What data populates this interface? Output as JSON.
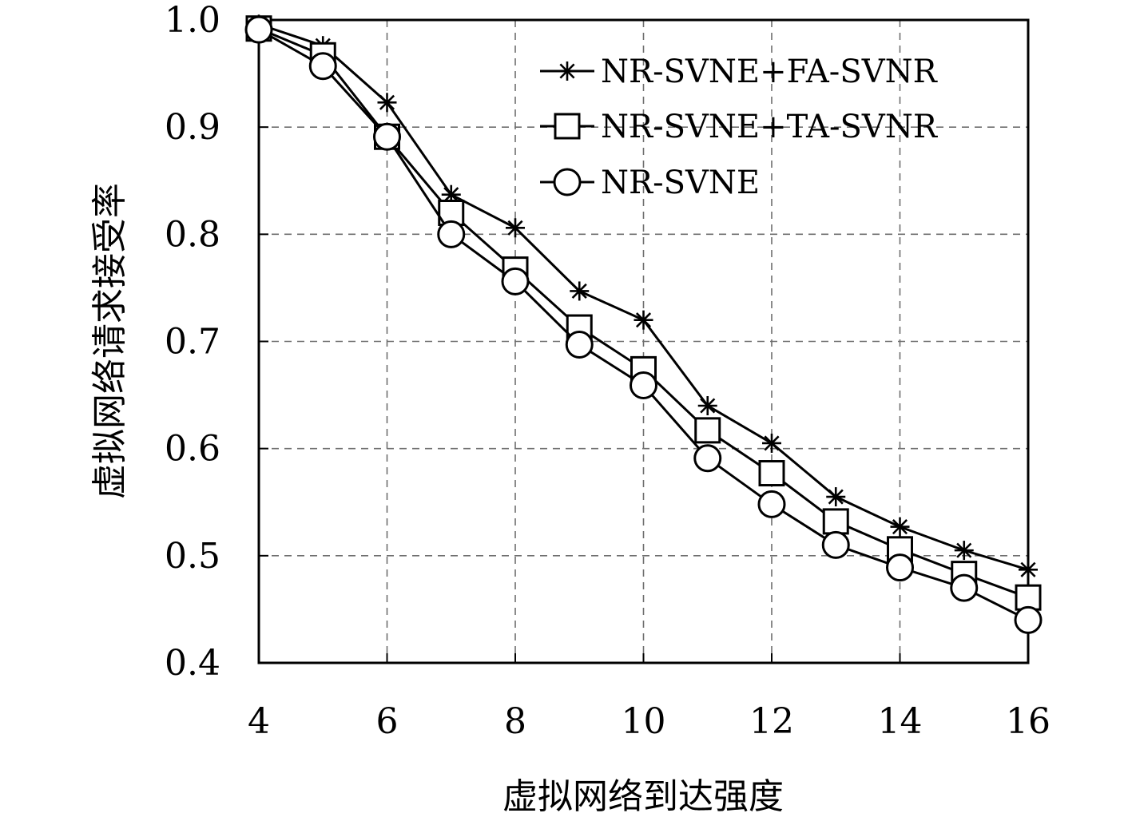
{
  "chart_data": {
    "type": "line",
    "xlabel": "虚拟网络到达强度",
    "ylabel": "虚拟网络请求接受率",
    "xlim": [
      4,
      16
    ],
    "ylim": [
      0.4,
      1.0
    ],
    "xticks": [
      4,
      6,
      8,
      10,
      12,
      14,
      16
    ],
    "yticks": [
      "0.4",
      "0.5",
      "0.6",
      "0.7",
      "0.8",
      "0.9",
      "1.0"
    ],
    "grid": true,
    "legend_position": "top-right",
    "x": [
      4,
      5,
      6,
      7,
      8,
      9,
      10,
      11,
      12,
      13,
      14,
      15,
      16
    ],
    "series": [
      {
        "name": "NR-SVNE+FA-SVNR",
        "marker": "asterisk",
        "values": [
          0.996,
          0.976,
          0.923,
          0.837,
          0.806,
          0.747,
          0.72,
          0.64,
          0.605,
          0.555,
          0.527,
          0.505,
          0.487
        ]
      },
      {
        "name": "NR-SVNE+TA-SVNR",
        "marker": "square",
        "values": [
          0.992,
          0.967,
          0.891,
          0.82,
          0.767,
          0.713,
          0.674,
          0.617,
          0.577,
          0.532,
          0.506,
          0.483,
          0.461
        ]
      },
      {
        "name": "NR-SVNE",
        "marker": "circle",
        "values": [
          0.991,
          0.957,
          0.891,
          0.8,
          0.756,
          0.697,
          0.659,
          0.591,
          0.548,
          0.51,
          0.489,
          0.47,
          0.44
        ]
      }
    ]
  }
}
